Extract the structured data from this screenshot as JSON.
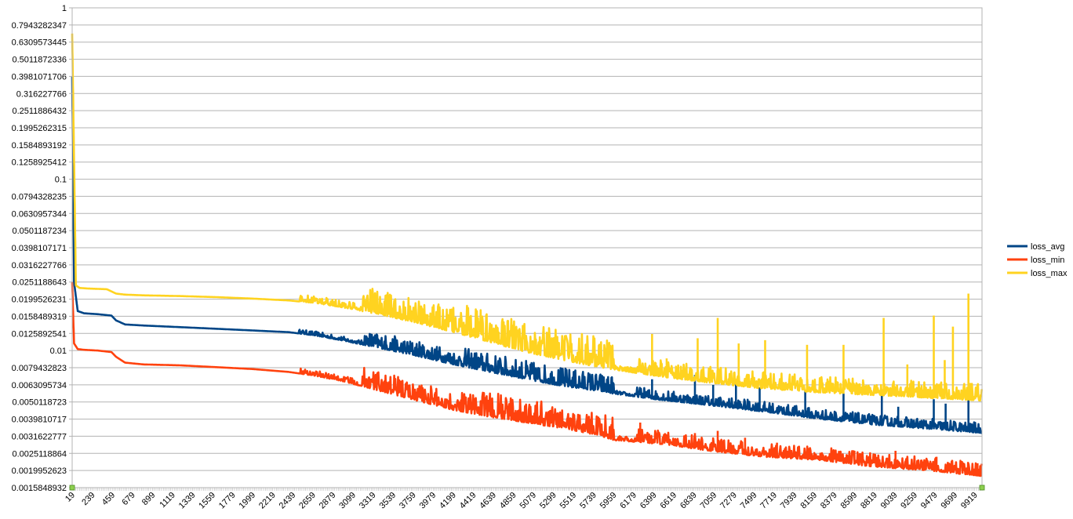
{
  "chart_data": {
    "type": "line",
    "title": "",
    "xlabel": "",
    "ylabel": "",
    "yscale": "log",
    "ylim": [
      0.0015848932,
      1
    ],
    "xlim": [
      19,
      9999
    ],
    "grid": true,
    "legend_position": "right",
    "y_tick_labels": [
      "1",
      "0.7943282347",
      "0.6309573445",
      "0.5011872336",
      "0.3981071706",
      "0.316227766",
      "0.2511886432",
      "0.1995262315",
      "0.1584893192",
      "0.1258925412",
      "0.1",
      "0.0794328235",
      "0.0630957344",
      "0.0501187234",
      "0.0398107171",
      "0.0316227766",
      "0.0251188643",
      "0.0199526231",
      "0.0158489319",
      "0.0125892541",
      "0.01",
      "0.0079432823",
      "0.0063095734",
      "0.0050118723",
      "0.0039810717",
      "0.0031622777",
      "0.0025118864",
      "0.0019952623",
      "0.0015848932"
    ],
    "x_tick_labels": [
      "19",
      "239",
      "459",
      "679",
      "899",
      "1119",
      "1339",
      "1559",
      "1779",
      "1999",
      "2219",
      "2439",
      "2659",
      "2879",
      "3099",
      "3319",
      "3539",
      "3759",
      "3979",
      "4199",
      "4419",
      "4639",
      "4859",
      "5079",
      "5299",
      "5519",
      "5739",
      "5959",
      "6179",
      "6399",
      "6619",
      "6839",
      "7059",
      "7279",
      "7499",
      "7719",
      "7939",
      "8159",
      "8379",
      "8599",
      "8819",
      "9039",
      "9259",
      "9479",
      "9699",
      "9919"
    ],
    "series": [
      {
        "name": "loss_avg",
        "color": "#004586",
        "x": [
          19,
          40,
          80,
          150,
          300,
          450,
          500,
          600,
          800,
          1200,
          1600,
          2000,
          2400,
          2700,
          3000,
          3400,
          3800,
          4200,
          4600,
          5000,
          5400,
          5800,
          5960,
          6400,
          7000,
          7600,
          8200,
          8800,
          9400,
          9999
        ],
        "y": [
          0.3981,
          0.025,
          0.017,
          0.0165,
          0.0163,
          0.016,
          0.015,
          0.0142,
          0.014,
          0.0137,
          0.0134,
          0.0131,
          0.0128,
          0.0122,
          0.0114,
          0.0103,
          0.0093,
          0.0083,
          0.0075,
          0.0068,
          0.0062,
          0.0058,
          0.0056,
          0.0052,
          0.0048,
          0.0044,
          0.004,
          0.0037,
          0.0035,
          0.0033
        ],
        "spikes": [
          {
            "x": 6380,
            "y": 0.0068
          },
          {
            "x": 6850,
            "y": 0.0072
          },
          {
            "x": 7050,
            "y": 0.0063
          },
          {
            "x": 7300,
            "y": 0.0066
          },
          {
            "x": 7560,
            "y": 0.0061
          },
          {
            "x": 8060,
            "y": 0.0059
          },
          {
            "x": 8480,
            "y": 0.0056
          },
          {
            "x": 8900,
            "y": 0.0058
          },
          {
            "x": 9080,
            "y": 0.0047
          },
          {
            "x": 9470,
            "y": 0.0052
          },
          {
            "x": 9600,
            "y": 0.0049
          },
          {
            "x": 9850,
            "y": 0.0061
          }
        ]
      },
      {
        "name": "loss_min",
        "color": "#ff420e",
        "x": [
          19,
          40,
          80,
          150,
          300,
          450,
          500,
          600,
          800,
          1200,
          1600,
          2000,
          2400,
          2700,
          3000,
          3400,
          3800,
          4200,
          4600,
          5000,
          5400,
          5800,
          5960,
          6300,
          6600,
          7000,
          7600,
          8200,
          8800,
          9400,
          9999
        ],
        "y": [
          0.0251,
          0.011,
          0.0102,
          0.0101,
          0.01,
          0.0098,
          0.0092,
          0.0085,
          0.0083,
          0.0082,
          0.008,
          0.0078,
          0.0075,
          0.0071,
          0.0066,
          0.0058,
          0.0051,
          0.0045,
          0.0041,
          0.0038,
          0.0035,
          0.0032,
          0.003,
          0.0029,
          0.0028,
          0.0026,
          0.0024,
          0.0023,
          0.0021,
          0.002,
          0.00185
        ],
        "spikes": [
          {
            "x": 6250,
            "y": 0.0038
          },
          {
            "x": 6850,
            "y": 0.0033
          },
          {
            "x": 7100,
            "y": 0.0034
          },
          {
            "x": 7400,
            "y": 0.0031
          },
          {
            "x": 7750,
            "y": 0.0029
          },
          {
            "x": 8100,
            "y": 0.0027
          },
          {
            "x": 8600,
            "y": 0.0026
          },
          {
            "x": 9050,
            "y": 0.0026
          },
          {
            "x": 9500,
            "y": 0.0024
          },
          {
            "x": 9950,
            "y": 0.0022
          }
        ]
      },
      {
        "name": "loss_max",
        "color": "#ffd320",
        "x": [
          19,
          30,
          60,
          100,
          200,
          400,
          500,
          600,
          800,
          1200,
          1600,
          2000,
          2400,
          2700,
          3000,
          3400,
          3800,
          4200,
          4600,
          5000,
          5400,
          5800,
          6200,
          6600,
          7000,
          7600,
          8200,
          8800,
          9400,
          9999
        ],
        "y": [
          0.708,
          0.3,
          0.024,
          0.0232,
          0.023,
          0.0228,
          0.0215,
          0.0212,
          0.021,
          0.0208,
          0.0205,
          0.0201,
          0.0196,
          0.0189,
          0.0178,
          0.0162,
          0.0145,
          0.0128,
          0.0112,
          0.0098,
          0.0088,
          0.008,
          0.0074,
          0.0069,
          0.0065,
          0.006,
          0.0057,
          0.0055,
          0.0053,
          0.0051
        ],
        "spikes": [
          {
            "x": 6380,
            "y": 0.0125
          },
          {
            "x": 6540,
            "y": 0.009
          },
          {
            "x": 6880,
            "y": 0.0118
          },
          {
            "x": 7100,
            "y": 0.0155
          },
          {
            "x": 7330,
            "y": 0.011
          },
          {
            "x": 7620,
            "y": 0.0115
          },
          {
            "x": 8080,
            "y": 0.0108
          },
          {
            "x": 8480,
            "y": 0.0108
          },
          {
            "x": 8920,
            "y": 0.0155
          },
          {
            "x": 9180,
            "y": 0.0083
          },
          {
            "x": 9470,
            "y": 0.016
          },
          {
            "x": 9590,
            "y": 0.0088
          },
          {
            "x": 9680,
            "y": 0.0138
          },
          {
            "x": 9850,
            "y": 0.0215
          }
        ]
      }
    ]
  }
}
